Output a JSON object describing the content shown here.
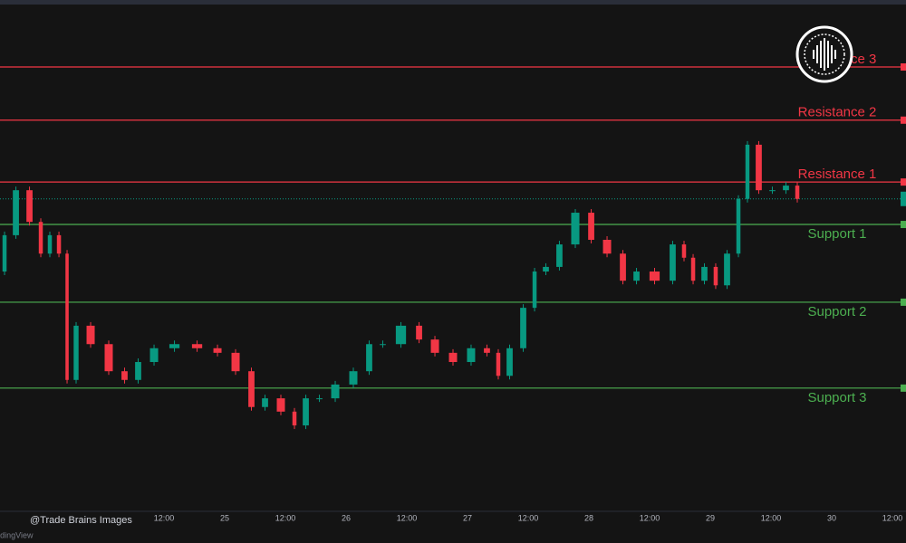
{
  "chart_data": {
    "type": "candlestick",
    "x": [
      23.149,
      23.224,
      23.336,
      23.448,
      23.522,
      23.597,
      23.672,
      23.731,
      23.821,
      23.97,
      24.119,
      24.231,
      24.343,
      24.493,
      24.679,
      24.866,
      25.015,
      25.164,
      25.276,
      25.388,
      25.537,
      25.612,
      25.724,
      25.836,
      25.985,
      26.134,
      26.246,
      26.358,
      26.545,
      26.657,
      26.806,
      26.955,
      27.104,
      27.216,
      27.291,
      27.403,
      27.515,
      27.59,
      27.701,
      27.813,
      27.963,
      28.075,
      28.224,
      28.336,
      28.448,
      28.634,
      28.746,
      28.821,
      28.896,
      29.007,
      29.082,
      29.194,
      29.269,
      29.343,
      29.455,
      29.567,
      29.679,
      29.754
    ],
    "close": [
      46.9,
      54.0,
      62.8,
      56.6,
      50.4,
      54.0,
      50.4,
      25.7,
      36.3,
      32.7,
      27.4,
      25.7,
      29.2,
      31.9,
      32.7,
      31.9,
      31.0,
      27.4,
      20.4,
      22.1,
      19.5,
      16.8,
      22.1,
      22.1,
      24.8,
      27.4,
      32.7,
      32.7,
      36.3,
      33.6,
      31.0,
      29.2,
      31.9,
      31.0,
      26.5,
      31.9,
      39.8,
      46.9,
      47.8,
      52.2,
      58.4,
      53.1,
      50.4,
      45.1,
      46.9,
      45.1,
      52.2,
      49.6,
      45.1,
      47.8,
      44.2,
      50.4,
      61.1,
      71.7,
      62.8,
      62.8,
      63.7,
      61.1
    ],
    "up_color": "#089981",
    "down_color": "#f23645",
    "xlim": [
      23.149,
      30.612
    ],
    "ylim": [
      0,
      100
    ],
    "xticks": [
      {
        "value": 24.5,
        "label": "12:00"
      },
      25,
      {
        "value": 25.5,
        "label": "12:00"
      },
      26,
      {
        "value": 26.5,
        "label": "12:00"
      },
      27,
      {
        "value": 27.5,
        "label": "12:00"
      },
      28,
      {
        "value": 28.5,
        "label": "12:00"
      },
      29,
      {
        "value": 29.5,
        "label": "12:00"
      },
      30,
      {
        "value": 30.5,
        "label": "12:00"
      }
    ],
    "levels": [
      {
        "name": "Resistance 3",
        "value": 86.9,
        "color": "#f23645"
      },
      {
        "name": "Resistance 2",
        "value": 76.5,
        "color": "#f23645"
      },
      {
        "name": "Resistance 1",
        "value": 64.4,
        "color": "#f23645"
      },
      {
        "name": "Support 1",
        "value": 56.1,
        "color": "#4caf50"
      },
      {
        "name": "Support 2",
        "value": 40.9,
        "color": "#4caf50"
      },
      {
        "name": "Support 3",
        "value": 24.1,
        "color": "#4caf50"
      }
    ],
    "last_price": 61.1,
    "last_color": "#089981"
  },
  "watermark": "@Trade Brains Images",
  "brand": "TradingView"
}
